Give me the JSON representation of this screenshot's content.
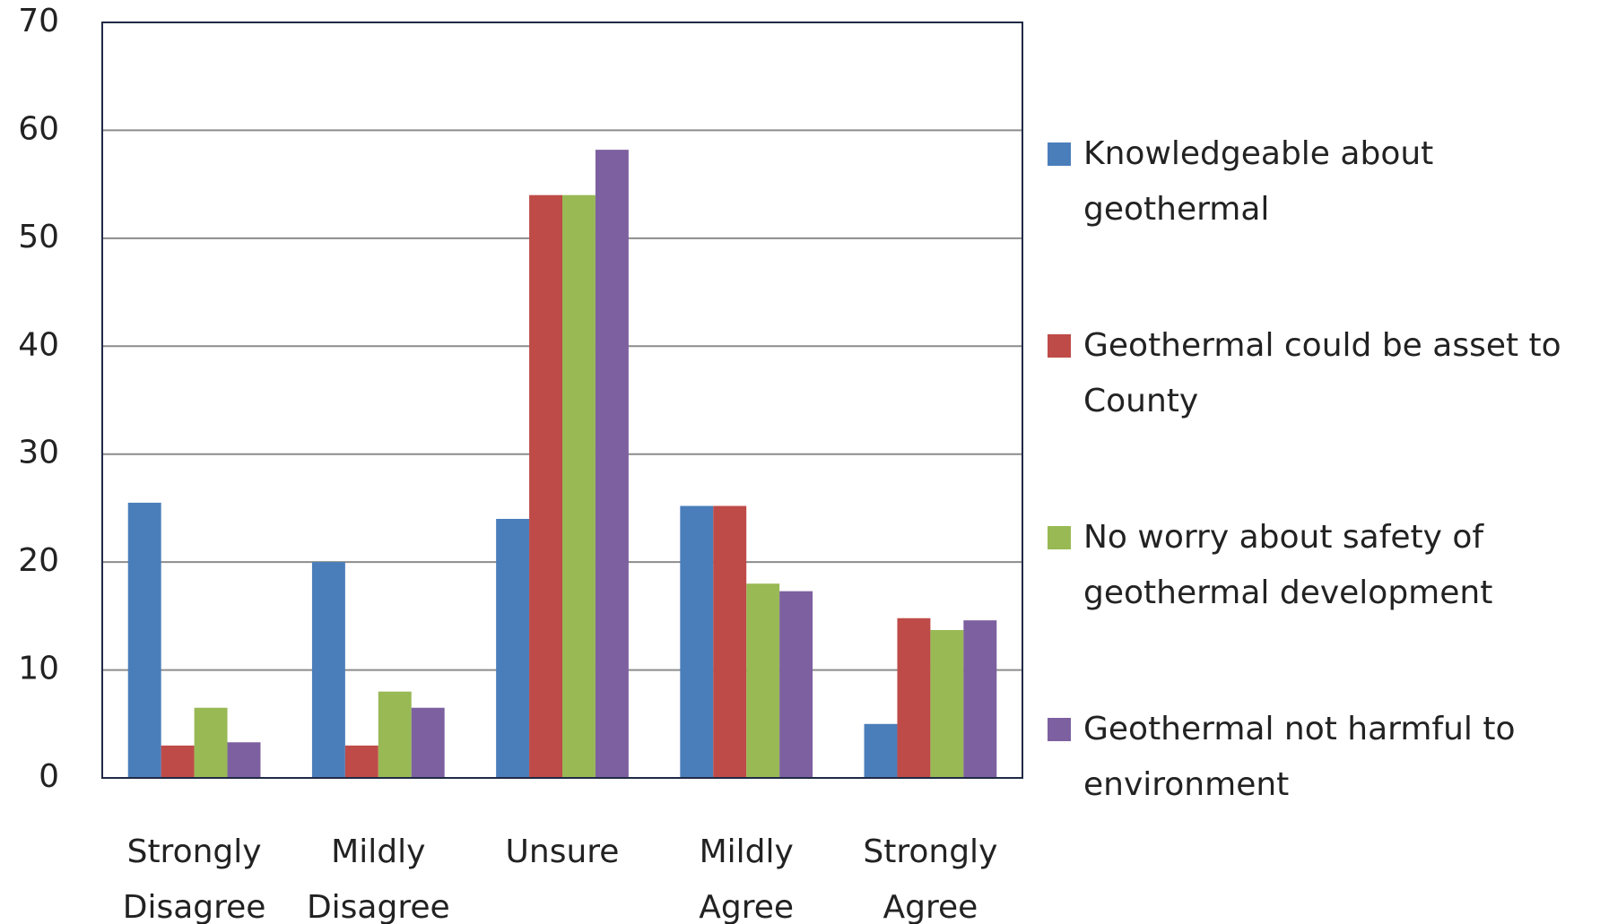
{
  "chart_data": {
    "type": "bar",
    "categories": [
      "Strongly Disagree",
      "Mildly Disagree",
      "Unsure",
      "Mildly Agree",
      "Strongly Agree"
    ],
    "series": [
      {
        "name": "Knowledgeable about geothermal",
        "color": "#4a7ebb",
        "values": [
          25.5,
          20,
          24,
          25.2,
          5
        ]
      },
      {
        "name": "Geothermal could be asset to County",
        "color": "#be4b48",
        "values": [
          3,
          3,
          54,
          25.2,
          14.8
        ]
      },
      {
        "name": "No worry about safety of geothermal development",
        "color": "#98b954",
        "values": [
          6.5,
          8,
          54,
          18,
          13.7
        ]
      },
      {
        "name": "Geothermal not harmful to environment",
        "color": "#7d60a0",
        "values": [
          3.3,
          6.5,
          58.2,
          17.3,
          14.6
        ]
      }
    ],
    "ylim": [
      0,
      70
    ],
    "yticks": [
      0,
      10,
      20,
      30,
      40,
      50,
      60,
      70
    ],
    "grid": true,
    "legend": "right"
  }
}
